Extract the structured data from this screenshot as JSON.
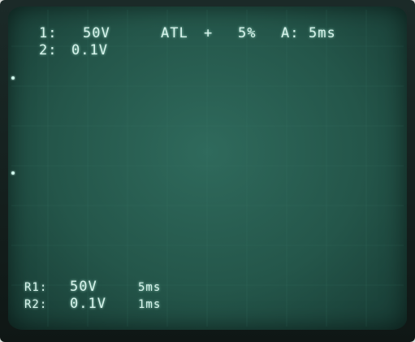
{
  "header": {
    "ch1": {
      "label": "1:",
      "value": "50V"
    },
    "ch2": {
      "label": "2:",
      "value": "0.1V"
    },
    "trigger": {
      "mode": "ATL",
      "slope": "+",
      "percent": "5%"
    },
    "timebase": {
      "label": "A:",
      "value": "5ms"
    }
  },
  "footer": {
    "row1": {
      "label": "R1:",
      "volts": "50V",
      "time": "5ms"
    },
    "row2": {
      "label": "R2:",
      "volts": "0.1V",
      "time": "1ms"
    }
  },
  "colors": {
    "trace": "#cff7ec",
    "screen": "#2a5f53",
    "bezel": "#142120"
  }
}
